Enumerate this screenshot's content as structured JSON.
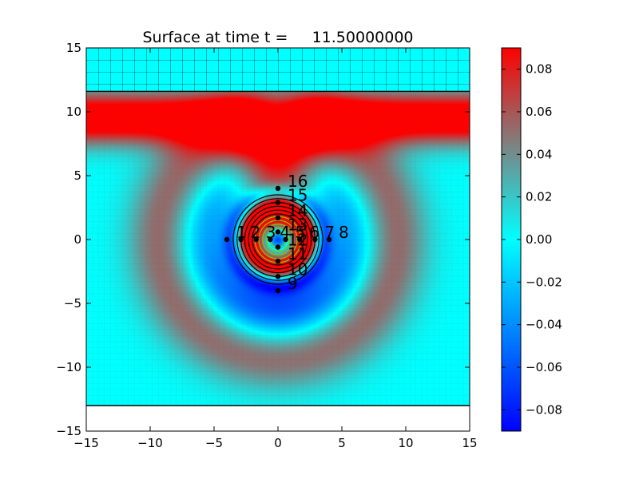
{
  "chart_data": {
    "type": "heatmap",
    "title": "Surface at time t =     11.50000000",
    "xlabel": "",
    "ylabel": "",
    "xlim": [
      -15,
      15
    ],
    "ylim": [
      -15,
      15
    ],
    "xticks": [
      -15,
      -10,
      -5,
      0,
      5,
      10,
      15
    ],
    "yticks": [
      -15,
      -10,
      -5,
      0,
      5,
      10,
      15
    ],
    "grid": "cell mesh overlay",
    "colormap": {
      "name": "blue-cyan-red",
      "stops": [
        "#0000ff",
        "#00ffff",
        "#ff0000"
      ],
      "range": [
        -0.09,
        0.09
      ]
    },
    "colorbar_ticks": [
      0.08,
      0.06,
      0.04,
      0.02,
      0.0,
      -0.02,
      -0.04,
      -0.06,
      -0.08
    ],
    "colorbar_tick_labels": [
      "0.08",
      "0.06",
      "0.04",
      "0.02",
      "0.00",
      "−0.02",
      "−0.04",
      "−0.06",
      "−0.08"
    ],
    "land_band": {
      "y_from": 11.6,
      "y_to": 15,
      "color": "#00ffff"
    },
    "shore_line_y": 11.6,
    "bottom_boundary_y": -13,
    "contours": {
      "center": [
        0,
        0
      ],
      "outer_radii": [
        2.0,
        2.3,
        2.6,
        2.9,
        3.2,
        3.5
      ],
      "inner_radii": [
        0.6,
        0.9,
        1.2,
        1.5,
        1.8
      ],
      "outer_color": "#000000",
      "inner_color": "#77cc00"
    },
    "gauges": [
      {
        "label": "1",
        "x": -4,
        "y": 0
      },
      {
        "label": "2",
        "x": -2.9,
        "y": 0
      },
      {
        "label": "3",
        "x": -1.7,
        "y": 0
      },
      {
        "label": "4",
        "x": -0.6,
        "y": 0
      },
      {
        "label": "5",
        "x": 0.6,
        "y": 0
      },
      {
        "label": "6",
        "x": 1.7,
        "y": 0
      },
      {
        "label": "7",
        "x": 2.9,
        "y": 0
      },
      {
        "label": "8",
        "x": 4,
        "y": 0
      },
      {
        "label": "9",
        "x": 0,
        "y": -4
      },
      {
        "label": "10",
        "x": 0,
        "y": -2.9
      },
      {
        "label": "11",
        "x": 0,
        "y": -1.7
      },
      {
        "label": "12",
        "x": 0,
        "y": -0.6
      },
      {
        "label": "13",
        "x": 0,
        "y": 0.6
      },
      {
        "label": "14",
        "x": 0,
        "y": 1.7
      },
      {
        "label": "15",
        "x": 0,
        "y": 2.9
      },
      {
        "label": "16",
        "x": 0,
        "y": 4
      }
    ]
  }
}
